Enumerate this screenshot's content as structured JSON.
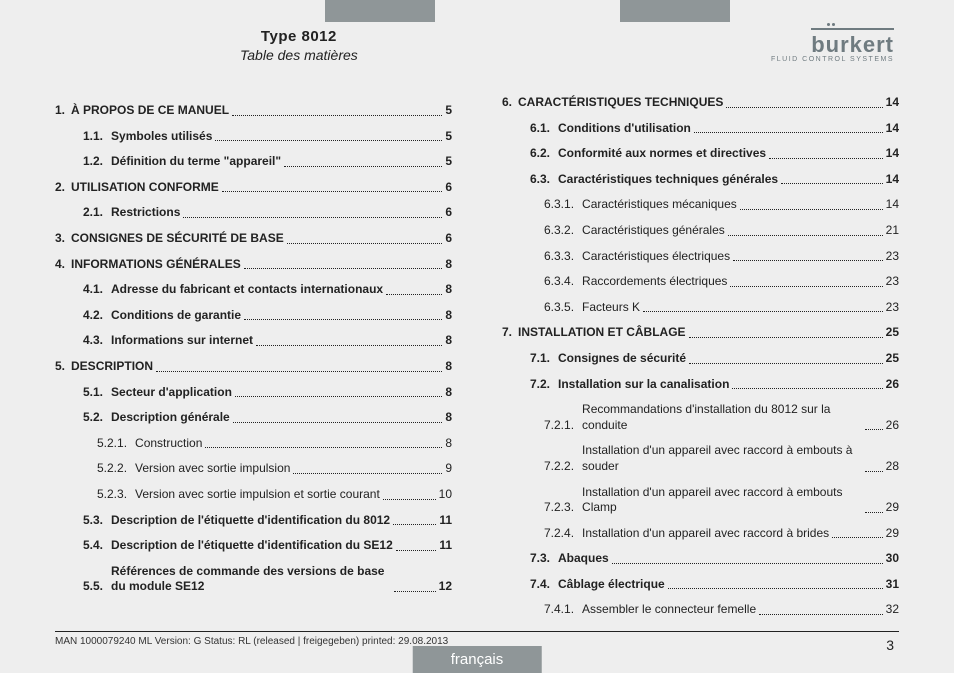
{
  "header": {
    "type_label": "Type 8012",
    "subtitle": "Table des matières",
    "logo_main": "burkert",
    "logo_sub": "FLUID CONTROL SYSTEMS"
  },
  "colors": {
    "tab_gray": "#8f9698",
    "bg": "#eeeeee",
    "text": "#222222",
    "logo": "#6f7b80"
  },
  "toc": [
    {
      "level": 1,
      "num": "1.",
      "label": "À PROPOS DE CE MANUEL",
      "page": "5"
    },
    {
      "level": 2,
      "num": "1.1.",
      "label": "Symboles utilisés",
      "page": "5"
    },
    {
      "level": 2,
      "num": "1.2.",
      "label": "Définition du terme \"appareil\"",
      "page": "5"
    },
    {
      "level": 1,
      "num": "2.",
      "label": "UTILISATION CONFORME",
      "page": "6"
    },
    {
      "level": 2,
      "num": "2.1.",
      "label": "Restrictions",
      "page": "6"
    },
    {
      "level": 1,
      "num": "3.",
      "label": "CONSIGNES DE SÉCURITÉ DE BASE",
      "page": "6"
    },
    {
      "level": 1,
      "num": "4.",
      "label": "INFORMATIONS GÉNÉRALES",
      "page": "8"
    },
    {
      "level": 2,
      "num": "4.1.",
      "label": "Adresse du fabricant et contacts internationaux",
      "page": "8"
    },
    {
      "level": 2,
      "num": "4.2.",
      "label": "Conditions de garantie",
      "page": "8"
    },
    {
      "level": 2,
      "num": "4.3.",
      "label": "Informations sur internet",
      "page": "8"
    },
    {
      "level": 1,
      "num": "5.",
      "label": "DESCRIPTION",
      "page": "8"
    },
    {
      "level": 2,
      "num": "5.1.",
      "label": "Secteur d'application",
      "page": "8"
    },
    {
      "level": 2,
      "num": "5.2.",
      "label": "Description générale",
      "page": "8"
    },
    {
      "level": 3,
      "num": "5.2.1.",
      "label": "Construction",
      "page": "8"
    },
    {
      "level": 3,
      "num": "5.2.2.",
      "label": "Version avec sortie impulsion",
      "page": "9"
    },
    {
      "level": 3,
      "num": "5.2.3.",
      "label": "Version avec sortie impulsion et sortie courant",
      "page": "10"
    },
    {
      "level": 2,
      "num": "5.3.",
      "label": "Description de l'étiquette d'identification du 8012",
      "page": "11"
    },
    {
      "level": 2,
      "num": "5.4.",
      "label": "Description de l'étiquette d'identification du SE12",
      "page": "11"
    },
    {
      "level": 2,
      "num": "5.5.",
      "label": "Références de commande des versions de base du module SE12",
      "page": "12",
      "wrap": true
    },
    {
      "level": 1,
      "num": "6.",
      "label": "CARACTÉRISTIQUES TECHNIQUES",
      "page": "14"
    },
    {
      "level": 2,
      "num": "6.1.",
      "label": "Conditions d'utilisation",
      "page": "14"
    },
    {
      "level": 2,
      "num": "6.2.",
      "label": "Conformité aux normes et directives",
      "page": "14"
    },
    {
      "level": 2,
      "num": "6.3.",
      "label": "Caractéristiques techniques générales",
      "page": "14"
    },
    {
      "level": 3,
      "num": "6.3.1.",
      "label": "Caractéristiques mécaniques",
      "page": "14"
    },
    {
      "level": 3,
      "num": "6.3.2.",
      "label": "Caractéristiques générales",
      "page": "21"
    },
    {
      "level": 3,
      "num": "6.3.3.",
      "label": "Caractéristiques électriques",
      "page": "23"
    },
    {
      "level": 3,
      "num": "6.3.4.",
      "label": "Raccordements électriques",
      "page": "23"
    },
    {
      "level": 3,
      "num": "6.3.5.",
      "label": "Facteurs K",
      "page": "23"
    },
    {
      "level": 1,
      "num": "7.",
      "label": "INSTALLATION ET CÂBLAGE",
      "page": "25"
    },
    {
      "level": 2,
      "num": "7.1.",
      "label": "Consignes de sécurité",
      "page": "25"
    },
    {
      "level": 2,
      "num": "7.2.",
      "label": "Installation sur la canalisation",
      "page": "26"
    },
    {
      "level": 3,
      "num": "7.2.1.",
      "label": "Recommandations d'installation du 8012 sur la conduite",
      "page": "26",
      "wrap": true
    },
    {
      "level": 3,
      "num": "7.2.2.",
      "label": "Installation d'un appareil avec raccord à embouts à souder",
      "page": "28",
      "wrap": true
    },
    {
      "level": 3,
      "num": "7.2.3.",
      "label": "Installation d'un appareil avec raccord à embouts Clamp",
      "page": "29",
      "wrap": true
    },
    {
      "level": 3,
      "num": "7.2.4.",
      "label": "Installation d'un appareil avec raccord à brides",
      "page": "29"
    },
    {
      "level": 2,
      "num": "7.3.",
      "label": "Abaques",
      "page": "30"
    },
    {
      "level": 2,
      "num": "7.4.",
      "label": "Câblage électrique",
      "page": "31"
    },
    {
      "level": 3,
      "num": "7.4.1.",
      "label": "Assembler le connecteur femelle",
      "page": "32"
    }
  ],
  "footer": {
    "meta": "MAN 1000079240 ML Version: G Status: RL (released | freigegeben) printed: 29.08.2013",
    "lang": "français",
    "page": "3"
  }
}
